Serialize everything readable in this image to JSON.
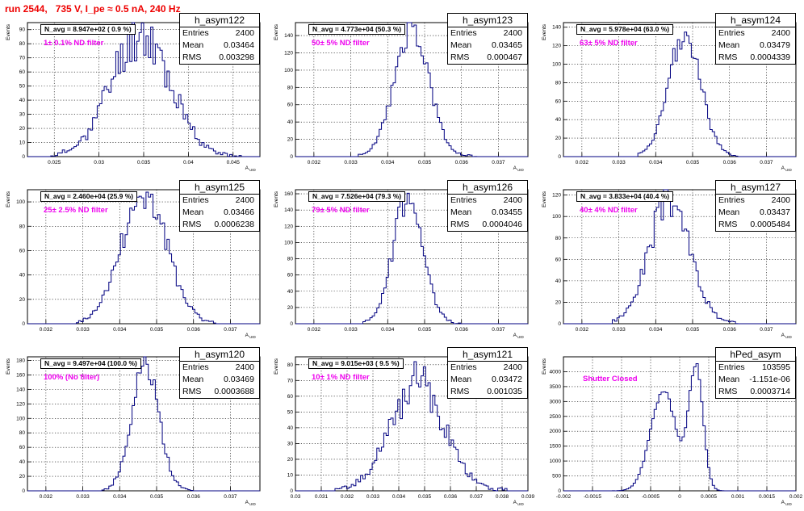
{
  "page": {
    "title": "run 2544,   735 V, I_pe ≈ 0.5 nA, 240 Hz"
  },
  "panels": [
    {
      "id": "h_asym122",
      "navg": "N_avg = 8.947e+02 ( 0.9 %)",
      "note": "1± 0.1% ND filter",
      "stats": {
        "entries": "2400",
        "mean": "0.03464",
        "rms": "0.003298"
      },
      "chart_data": {
        "type": "histogram",
        "xlim": [
          0.022,
          0.048
        ],
        "ylim": [
          0,
          95
        ],
        "xticks": [
          0.025,
          0.03,
          0.035,
          0.04,
          0.045
        ],
        "xticklabels": [
          "0.025",
          "0.03",
          "0.035",
          "0.04",
          "0.045"
        ],
        "yticks": [
          10,
          20,
          30,
          40,
          50,
          60,
          70,
          80,
          90
        ],
        "xlabel": "A",
        "xsub": "UID",
        "ylabel": "Events",
        "mean": 0.03464,
        "rms": 0.003298,
        "peak": 88,
        "range": [
          0.0245,
          0.046
        ],
        "seed": 11,
        "noise": 0.22
      }
    },
    {
      "id": "h_asym123",
      "navg": "N_avg = 4.773e+04 (50.3 %)",
      "note": "50± 5% ND filter",
      "stats": {
        "entries": "2400",
        "mean": "0.03465",
        "rms": "0.000467"
      },
      "chart_data": {
        "type": "histogram",
        "xlim": [
          0.0315,
          0.0378
        ],
        "ylim": [
          0,
          155
        ],
        "xticks": [
          0.032,
          0.033,
          0.034,
          0.035,
          0.036,
          0.037
        ],
        "xticklabels": [
          "0.032",
          "0.033",
          "0.034",
          "0.035",
          "0.036",
          "0.037"
        ],
        "yticks": [
          20,
          40,
          60,
          80,
          100,
          120,
          140
        ],
        "xlabel": "A",
        "xsub": "UID",
        "ylabel": "Events",
        "mean": 0.03465,
        "rms": 0.000467,
        "peak": 148,
        "range": [
          0.0332,
          0.0364
        ],
        "seed": 23,
        "noise": 0.12
      }
    },
    {
      "id": "h_asym124",
      "navg": "N_avg = 5.978e+04 (63.0 %)",
      "note": "63± 5% ND filter",
      "stats": {
        "entries": "2400",
        "mean": "0.03479",
        "rms": "0.0004339"
      },
      "chart_data": {
        "type": "histogram",
        "xlim": [
          0.0315,
          0.0378
        ],
        "ylim": [
          0,
          145
        ],
        "xticks": [
          0.032,
          0.033,
          0.034,
          0.035,
          0.036,
          0.037
        ],
        "xticklabels": [
          "0.032",
          "0.033",
          "0.034",
          "0.035",
          "0.036",
          "0.037"
        ],
        "yticks": [
          20,
          40,
          60,
          80,
          100,
          120,
          140
        ],
        "xlabel": "A",
        "xsub": "UID",
        "ylabel": "Events",
        "mean": 0.03479,
        "rms": 0.0004339,
        "peak": 132,
        "range": [
          0.0335,
          0.0362
        ],
        "seed": 37,
        "noise": 0.12
      }
    },
    {
      "id": "h_asym125",
      "navg": "N_avg = 2.460e+04 (25.9 %)",
      "note": "25± 2.5% ND filter",
      "stats": {
        "entries": "2400",
        "mean": "0.03466",
        "rms": "0.0006238"
      },
      "chart_data": {
        "type": "histogram",
        "xlim": [
          0.0315,
          0.0378
        ],
        "ylim": [
          0,
          110
        ],
        "xticks": [
          0.032,
          0.033,
          0.034,
          0.035,
          0.036,
          0.037
        ],
        "xticklabels": [
          "0.032",
          "0.033",
          "0.034",
          "0.035",
          "0.036",
          "0.037"
        ],
        "yticks": [
          20,
          40,
          60,
          80,
          100
        ],
        "xlabel": "A",
        "xsub": "UID",
        "ylabel": "Events",
        "mean": 0.03466,
        "rms": 0.0006238,
        "peak": 105,
        "range": [
          0.0328,
          0.0366
        ],
        "seed": 41,
        "noise": 0.15
      }
    },
    {
      "id": "h_asym126",
      "navg": "N_avg = 7.526e+04 (79.3 %)",
      "note": "79± 5% ND filter",
      "stats": {
        "entries": "2400",
        "mean": "0.03455",
        "rms": "0.0004046"
      },
      "chart_data": {
        "type": "histogram",
        "xlim": [
          0.0315,
          0.0378
        ],
        "ylim": [
          0,
          165
        ],
        "xticks": [
          0.032,
          0.033,
          0.034,
          0.035,
          0.036,
          0.037
        ],
        "xticklabels": [
          "0.032",
          "0.033",
          "0.034",
          "0.035",
          "0.036",
          "0.037"
        ],
        "yticks": [
          20,
          40,
          60,
          80,
          100,
          120,
          140,
          160
        ],
        "xlabel": "A",
        "xsub": "UID",
        "ylabel": "Events",
        "mean": 0.03455,
        "rms": 0.0004046,
        "peak": 155,
        "range": [
          0.0333,
          0.036
        ],
        "seed": 53,
        "noise": 0.12
      }
    },
    {
      "id": "h_asym127",
      "navg": "N_avg = 3.833e+04 (40.4 %)",
      "note": "40± 4% ND filter",
      "stats": {
        "entries": "2400",
        "mean": "0.03437",
        "rms": "0.0005484"
      },
      "chart_data": {
        "type": "histogram",
        "xlim": [
          0.0315,
          0.0378
        ],
        "ylim": [
          0,
          125
        ],
        "xticks": [
          0.032,
          0.033,
          0.034,
          0.035,
          0.036,
          0.037
        ],
        "xticklabels": [
          "0.032",
          "0.033",
          "0.034",
          "0.035",
          "0.036",
          "0.037"
        ],
        "yticks": [
          20,
          40,
          60,
          80,
          100,
          120
        ],
        "xlabel": "A",
        "xsub": "UID",
        "ylabel": "Events",
        "mean": 0.03437,
        "rms": 0.0005484,
        "peak": 118,
        "range": [
          0.0328,
          0.0363
        ],
        "seed": 67,
        "noise": 0.15
      }
    },
    {
      "id": "h_asym120",
      "navg": "N_avg = 9.497e+04 (100.0 %)",
      "note": "100% (No filter)",
      "stats": {
        "entries": "2400",
        "mean": "0.03469",
        "rms": "0.0003688"
      },
      "chart_data": {
        "type": "histogram",
        "xlim": [
          0.0315,
          0.0378
        ],
        "ylim": [
          0,
          185
        ],
        "xticks": [
          0.032,
          0.033,
          0.034,
          0.035,
          0.036,
          0.037
        ],
        "xticklabels": [
          "0.032",
          "0.033",
          "0.034",
          "0.035",
          "0.036",
          "0.037"
        ],
        "yticks": [
          20,
          40,
          60,
          80,
          100,
          120,
          140,
          160,
          180
        ],
        "xlabel": "A",
        "xsub": "UID",
        "ylabel": "Events",
        "mean": 0.03469,
        "rms": 0.0003688,
        "peak": 172,
        "range": [
          0.0335,
          0.036
        ],
        "seed": 79,
        "noise": 0.12
      }
    },
    {
      "id": "h_asym121",
      "navg": "N_avg = 9.015e+03 ( 9.5 %)",
      "note": "10± 1% ND filter",
      "stats": {
        "entries": "2400",
        "mean": "0.03472",
        "rms": "0.001035"
      },
      "chart_data": {
        "type": "histogram",
        "xlim": [
          0.03,
          0.039
        ],
        "ylim": [
          0,
          85
        ],
        "xticks": [
          0.03,
          0.031,
          0.032,
          0.033,
          0.034,
          0.035,
          0.036,
          0.037,
          0.038,
          0.039
        ],
        "xticklabels": [
          "0.03",
          "0.031",
          "0.032",
          "0.033",
          "0.034",
          "0.035",
          "0.036",
          "0.037",
          "0.038",
          "0.039"
        ],
        "yticks": [
          10,
          20,
          30,
          40,
          50,
          60,
          70,
          80
        ],
        "xlabel": "A",
        "xsub": "UID",
        "ylabel": "Events",
        "mean": 0.03472,
        "rms": 0.001035,
        "peak": 70,
        "range": [
          0.0315,
          0.0382
        ],
        "seed": 97,
        "noise": 0.2
      }
    },
    {
      "id": "hPed_asym",
      "navg": "",
      "note": "Shutter Closed",
      "stats": {
        "entries": "103595",
        "mean": "-1.151e-06",
        "rms": "0.0003714"
      },
      "chart_data": {
        "type": "histogram",
        "xlim": [
          -0.002,
          0.002
        ],
        "ylim": [
          0,
          4500
        ],
        "xticks": [
          -0.002,
          -0.0015,
          -0.001,
          -0.0005,
          0,
          0.0005,
          0.001,
          0.0015,
          0.002
        ],
        "xticklabels": [
          "-0.002",
          "-0.0015",
          "-0.001",
          "-0.0005",
          "0",
          "0.0005",
          "0.001",
          "0.0015",
          "0.002"
        ],
        "yticks": [
          500,
          1000,
          1500,
          2000,
          2500,
          3000,
          3500,
          4000
        ],
        "xlabel": "A",
        "xsub": "UID",
        "ylabel": "Events",
        "bimodal": [
          {
            "mu": -0.00028,
            "sd": 0.00022,
            "amp": 3350
          },
          {
            "mu": 0.00028,
            "sd": 0.00012,
            "amp": 4150
          }
        ],
        "range": [
          -0.0012,
          0.0011
        ],
        "seed": 5,
        "noise": 0.03
      }
    }
  ]
}
